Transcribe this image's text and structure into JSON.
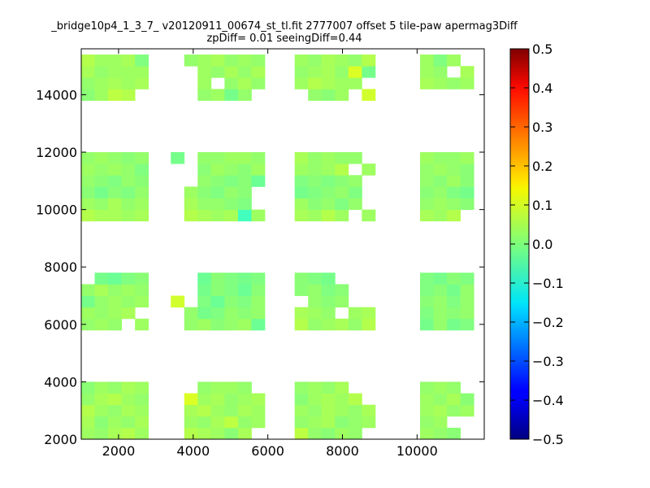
{
  "chart_data": {
    "type": "heatmap",
    "title_lines": [
      "_bridge10p4_1_3_7_ v20120911_00674_st_tl.fit 2777007 offset 5 tile-paw apermag3Diff",
      "zpDiff= 0.01 seeingDiff=0.44"
    ],
    "xlabel": "",
    "ylabel": "",
    "xlim": [
      1000,
      11800
    ],
    "ylim": [
      2000,
      15600
    ],
    "x_ticks": [
      2000,
      4000,
      6000,
      8000,
      10000
    ],
    "x_tick_labels": [
      "2000",
      "4000",
      "6000",
      "8000",
      "10000"
    ],
    "y_ticks": [
      2000,
      4000,
      6000,
      8000,
      10000,
      12000,
      14000
    ],
    "y_tick_labels": [
      "2000",
      "4000",
      "6000",
      "8000",
      "10000",
      "12000",
      "14000"
    ],
    "colormap": "jet",
    "color_range": [
      -0.5,
      0.5
    ],
    "colorbar_ticks": [
      0.5,
      0.4,
      0.3,
      0.2,
      0.1,
      0.0,
      -0.1,
      -0.2,
      -0.3,
      -0.4,
      -0.5
    ],
    "colorbar_tick_labels": [
      "0.5",
      "0.4",
      "0.3",
      "0.2",
      "0.1",
      "0.0",
      "−0.1",
      "−0.2",
      "−0.3",
      "−0.4",
      "−0.5"
    ],
    "cell_size": [
      360,
      400
    ],
    "column_starts": [
      1000,
      1360,
      1720,
      2080,
      2440,
      3400,
      3760,
      4120,
      4480,
      4840,
      5200,
      5560,
      6720,
      7080,
      7440,
      7800,
      8160,
      8520,
      10080,
      10440,
      10800,
      11160
    ],
    "row_starts": [
      2000,
      2400,
      2800,
      3200,
      3600,
      5800,
      6200,
      6600,
      7000,
      7400,
      9600,
      10000,
      10400,
      10800,
      11200,
      11600,
      13800,
      14200,
      14600,
      15000
    ],
    "value_rows": [
      [
        0.03,
        0.02,
        0.04,
        0.05,
        0.03,
        null,
        0.05,
        0.04,
        0.03,
        0.01,
        0.04,
        null,
        0.06,
        0.02,
        0.01,
        0.03,
        0.02,
        null,
        0.03,
        0.02,
        0.01,
        null
      ],
      [
        0.04,
        0.01,
        0.03,
        0.02,
        0.04,
        null,
        0.03,
        0.02,
        0.04,
        0.06,
        0.02,
        0.03,
        0.02,
        0.03,
        0.04,
        0.01,
        0.02,
        0.03,
        0.02,
        0.03,
        null,
        null
      ],
      [
        0.05,
        0.03,
        0.02,
        0.04,
        0.03,
        null,
        0.04,
        0.05,
        0.03,
        0.02,
        0.04,
        0.03,
        0.03,
        0.02,
        0.04,
        0.03,
        0.02,
        0.04,
        0.03,
        0.04,
        0.02,
        0.03
      ],
      [
        0.02,
        0.04,
        0.05,
        0.03,
        0.02,
        null,
        0.09,
        0.03,
        0.04,
        0.02,
        0.03,
        0.04,
        0.01,
        0.03,
        0.04,
        0.03,
        0.05,
        null,
        0.03,
        0.02,
        0.04,
        0.01
      ],
      [
        0.01,
        0.03,
        0.02,
        0.04,
        0.03,
        null,
        null,
        0.02,
        0.03,
        0.03,
        0.02,
        null,
        0.02,
        0.03,
        0.02,
        0.04,
        null,
        null,
        0.02,
        0.03,
        0.02,
        null
      ],
      [
        0.02,
        0.03,
        0.02,
        null,
        0.03,
        null,
        0.02,
        0.03,
        0.01,
        0.02,
        0.03,
        -0.02,
        0.05,
        0.02,
        0.03,
        0.04,
        0.02,
        0.05,
        -0.01,
        0.02,
        -0.01,
        0.0
      ],
      [
        0.03,
        0.02,
        0.03,
        0.04,
        null,
        null,
        0.02,
        -0.01,
        0.0,
        0.02,
        0.01,
        0.02,
        0.04,
        0.03,
        0.02,
        null,
        0.03,
        0.04,
        0.0,
        0.02,
        0.01,
        0.02
      ],
      [
        -0.01,
        0.02,
        0.03,
        0.02,
        0.03,
        0.08,
        null,
        0.0,
        -0.02,
        0.01,
        0.0,
        0.02,
        null,
        0.02,
        0.01,
        0.02,
        null,
        null,
        0.01,
        0.02,
        0.0,
        0.02
      ],
      [
        0.02,
        0.04,
        0.02,
        0.03,
        0.02,
        null,
        null,
        -0.01,
        0.01,
        0.0,
        -0.02,
        0.01,
        0.01,
        0.02,
        0.0,
        0.01,
        null,
        null,
        0.0,
        0.01,
        -0.01,
        0.02
      ],
      [
        null,
        -0.01,
        -0.02,
        0.0,
        0.01,
        null,
        null,
        -0.02,
        0.01,
        0.0,
        -0.01,
        0.0,
        0.01,
        0.0,
        -0.01,
        null,
        null,
        null,
        0.0,
        -0.01,
        0.01,
        0.0
      ],
      [
        0.05,
        0.04,
        0.04,
        0.03,
        0.04,
        null,
        0.05,
        0.04,
        0.03,
        0.04,
        -0.06,
        0.03,
        0.04,
        0.03,
        0.05,
        0.03,
        null,
        0.03,
        0.04,
        0.03,
        0.05,
        null
      ],
      [
        0.03,
        0.02,
        0.04,
        0.02,
        0.03,
        null,
        0.04,
        0.02,
        0.02,
        0.01,
        0.0,
        null,
        0.03,
        0.01,
        0.02,
        0.0,
        0.02,
        null,
        0.02,
        0.03,
        0.02,
        0.01
      ],
      [
        0.01,
        -0.01,
        0.01,
        0.0,
        0.02,
        null,
        0.03,
        0.01,
        0.0,
        0.02,
        0.01,
        null,
        -0.01,
        0.0,
        0.01,
        0.02,
        0.0,
        null,
        0.01,
        0.02,
        0.0,
        -0.01
      ],
      [
        0.02,
        0.01,
        0.0,
        0.02,
        0.01,
        null,
        null,
        0.02,
        0.01,
        0.0,
        0.01,
        -0.02,
        0.0,
        0.01,
        0.0,
        0.01,
        0.02,
        null,
        0.02,
        0.01,
        0.03,
        0.01
      ],
      [
        0.03,
        0.02,
        0.03,
        0.02,
        0.0,
        null,
        null,
        0.01,
        0.03,
        0.02,
        0.01,
        0.03,
        0.03,
        0.02,
        0.03,
        0.05,
        null,
        0.03,
        0.02,
        0.03,
        0.02,
        0.01
      ],
      [
        0.02,
        0.03,
        0.02,
        0.01,
        0.02,
        -0.01,
        null,
        0.02,
        0.02,
        0.03,
        0.03,
        0.02,
        0.04,
        0.02,
        0.03,
        0.02,
        0.02,
        null,
        0.03,
        0.02,
        0.02,
        0.03
      ],
      [
        0.01,
        0.03,
        0.06,
        0.05,
        null,
        null,
        null,
        0.02,
        0.03,
        -0.01,
        0.02,
        null,
        null,
        0.02,
        0.01,
        0.03,
        null,
        0.08,
        null,
        null,
        null,
        null
      ],
      [
        0.02,
        0.03,
        0.04,
        0.03,
        0.04,
        null,
        null,
        0.03,
        null,
        0.02,
        0.04,
        0.02,
        0.03,
        0.05,
        0.04,
        0.03,
        0.03,
        null,
        0.04,
        0.03,
        0.02,
        0.03
      ],
      [
        0.04,
        0.02,
        0.03,
        0.03,
        0.03,
        null,
        null,
        0.03,
        0.02,
        0.04,
        0.02,
        0.04,
        0.02,
        0.03,
        0.04,
        0.02,
        0.09,
        -0.01,
        0.03,
        0.02,
        null,
        0.04
      ],
      [
        0.05,
        0.03,
        0.03,
        0.04,
        0.0,
        null,
        0.02,
        0.03,
        0.04,
        0.02,
        0.03,
        0.02,
        0.03,
        0.02,
        0.04,
        0.03,
        0.02,
        0.05,
        0.03,
        0.0,
        0.03,
        null
      ]
    ]
  }
}
